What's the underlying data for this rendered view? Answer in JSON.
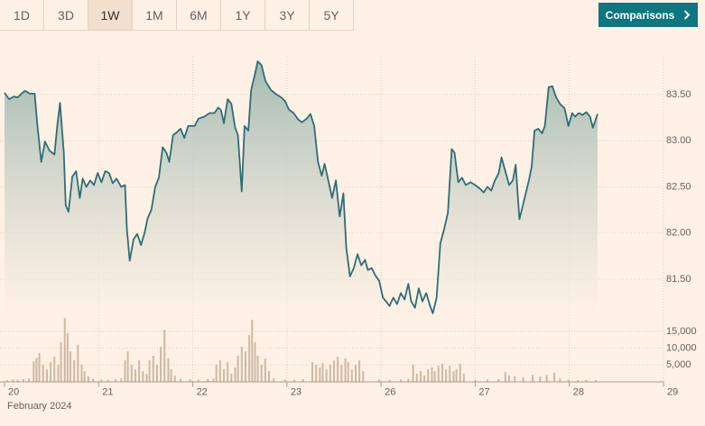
{
  "controls": {
    "ranges": [
      "1D",
      "3D",
      "1W",
      "1M",
      "6M",
      "1Y",
      "3Y",
      "5Y"
    ],
    "selected_index": 2,
    "comparisons": "Comparisons"
  },
  "chart_data": {
    "type": "area",
    "x_label": "February 2024",
    "xlim": [
      0,
      7
    ],
    "xticks": [
      {
        "value": 0,
        "label": "20"
      },
      {
        "value": 1,
        "label": "21"
      },
      {
        "value": 2,
        "label": "22"
      },
      {
        "value": 3,
        "label": "23"
      },
      {
        "value": 4,
        "label": "26"
      },
      {
        "value": 5,
        "label": "27"
      },
      {
        "value": 6,
        "label": "28"
      },
      {
        "value": 7,
        "label": "29"
      }
    ],
    "ylim": [
      81.1,
      83.9
    ],
    "yticks": [
      {
        "value": 81.5,
        "label": "81.50"
      },
      {
        "value": 82,
        "label": "82.00"
      },
      {
        "value": 82.5,
        "label": "82.50"
      },
      {
        "value": 83,
        "label": "83.00"
      },
      {
        "value": 83.5,
        "label": "83.50"
      }
    ],
    "y2lim": [
      0,
      20000
    ],
    "y2ticks": [
      {
        "value": 5000,
        "label": "5,000"
      },
      {
        "value": 10000,
        "label": "10,000"
      },
      {
        "value": 15000,
        "label": "15,000"
      }
    ],
    "grid": true,
    "series": [
      {
        "type": "area",
        "color": "#2e6e74",
        "x": [
          0.0,
          0.05,
          0.1,
          0.14,
          0.19,
          0.22,
          0.27,
          0.32,
          0.35,
          0.39,
          0.43,
          0.48,
          0.53,
          0.56,
          0.59,
          0.63,
          0.65,
          0.68,
          0.72,
          0.76,
          0.8,
          0.83,
          0.87,
          0.91,
          0.95,
          0.99,
          1.03,
          1.07,
          1.11,
          1.15,
          1.19,
          1.24,
          1.28,
          1.3,
          1.33,
          1.37,
          1.41,
          1.45,
          1.49,
          1.52,
          1.56,
          1.6,
          1.64,
          1.68,
          1.72,
          1.75,
          1.79,
          1.83,
          1.87,
          1.91,
          1.95,
          1.98,
          2.02,
          2.06,
          2.12,
          2.18,
          2.23,
          2.27,
          2.3,
          2.33,
          2.37,
          2.41,
          2.45,
          2.48,
          2.52,
          2.55,
          2.59,
          2.62,
          2.66,
          2.69,
          2.73,
          2.77,
          2.83,
          2.89,
          2.94,
          2.98,
          3.02,
          3.07,
          3.12,
          3.16,
          3.21,
          3.25,
          3.29,
          3.33,
          3.37,
          3.4,
          3.44,
          3.48,
          3.52,
          3.56,
          3.6,
          3.63,
          3.67,
          3.71,
          3.75,
          3.79,
          3.83,
          3.86,
          3.9,
          3.94,
          3.98,
          4.02,
          4.06,
          4.09,
          4.13,
          4.17,
          4.21,
          4.25,
          4.29,
          4.32,
          4.36,
          4.4,
          4.44,
          4.48,
          4.52,
          4.55,
          4.59,
          4.63,
          4.67,
          4.71,
          4.75,
          4.78,
          4.82,
          4.86,
          4.9,
          4.95,
          5.0,
          5.05,
          5.09,
          5.13,
          5.17,
          5.21,
          5.25,
          5.28,
          5.32,
          5.36,
          5.4,
          5.43,
          5.47,
          5.49,
          5.53,
          5.57,
          5.6,
          5.63,
          5.67,
          5.71,
          5.74,
          5.78,
          5.82,
          5.86,
          5.9,
          5.95,
          5.99,
          6.03,
          6.06,
          6.1,
          6.14,
          6.18,
          6.22,
          6.25,
          6.3
        ],
        "values": [
          83.52,
          83.45,
          83.48,
          83.47,
          83.52,
          83.54,
          83.51,
          83.51,
          83.16,
          82.77,
          82.99,
          82.89,
          82.85,
          83.16,
          83.41,
          82.87,
          82.3,
          82.23,
          82.61,
          82.67,
          82.38,
          82.59,
          82.5,
          82.57,
          82.52,
          82.65,
          82.55,
          82.67,
          82.65,
          82.54,
          82.59,
          82.5,
          82.52,
          82.04,
          81.7,
          81.93,
          81.99,
          81.87,
          82.01,
          82.16,
          82.25,
          82.5,
          82.6,
          82.93,
          82.87,
          82.77,
          83.06,
          83.09,
          83.13,
          83.03,
          83.16,
          83.16,
          83.16,
          83.24,
          83.26,
          83.3,
          83.3,
          83.36,
          83.33,
          83.19,
          83.45,
          83.4,
          83.14,
          83.06,
          82.45,
          83.16,
          83.11,
          83.55,
          83.72,
          83.86,
          83.82,
          83.65,
          83.55,
          83.5,
          83.47,
          83.43,
          83.34,
          83.3,
          83.23,
          83.2,
          83.24,
          83.29,
          83.16,
          82.77,
          82.62,
          82.75,
          82.57,
          82.38,
          82.57,
          82.18,
          82.43,
          81.84,
          81.53,
          81.62,
          81.77,
          81.65,
          81.71,
          81.6,
          81.62,
          81.54,
          81.48,
          81.3,
          81.25,
          81.21,
          81.3,
          81.23,
          81.35,
          81.28,
          81.45,
          81.26,
          81.19,
          81.4,
          81.26,
          81.35,
          81.21,
          81.13,
          81.3,
          81.89,
          82.04,
          82.22,
          82.91,
          82.87,
          82.55,
          82.6,
          82.52,
          82.55,
          82.52,
          82.48,
          82.44,
          82.5,
          82.46,
          82.57,
          82.65,
          82.82,
          82.67,
          82.52,
          82.57,
          82.74,
          82.15,
          82.23,
          82.4,
          82.57,
          82.72,
          83.11,
          83.13,
          83.08,
          83.16,
          83.58,
          83.59,
          83.47,
          83.4,
          83.35,
          83.16,
          83.3,
          83.26,
          83.3,
          83.28,
          83.31,
          83.26,
          83.14,
          83.29
        ]
      },
      {
        "type": "bar",
        "axis": "y2",
        "color": "#cdb8a3",
        "x": [
          0.03,
          0.09,
          0.14,
          0.2,
          0.26,
          0.31,
          0.34,
          0.37,
          0.41,
          0.45,
          0.49,
          0.53,
          0.57,
          0.6,
          0.64,
          0.67,
          0.7,
          0.74,
          0.78,
          0.82,
          0.85,
          0.89,
          0.94,
          1.03,
          1.1,
          1.18,
          1.24,
          1.28,
          1.31,
          1.35,
          1.39,
          1.43,
          1.47,
          1.51,
          1.54,
          1.58,
          1.62,
          1.66,
          1.7,
          1.74,
          1.77,
          1.81,
          1.87,
          1.97,
          2.06,
          2.16,
          2.22,
          2.25,
          2.29,
          2.33,
          2.37,
          2.41,
          2.45,
          2.48,
          2.52,
          2.56,
          2.6,
          2.63,
          2.66,
          2.69,
          2.73,
          2.77,
          2.81,
          2.86,
          2.98,
          3.08,
          3.17,
          3.27,
          3.31,
          3.35,
          3.38,
          3.42,
          3.46,
          3.5,
          3.54,
          3.58,
          3.62,
          3.65,
          3.69,
          3.73,
          3.77,
          3.81,
          3.98,
          4.09,
          4.21,
          4.29,
          4.34,
          4.38,
          4.42,
          4.46,
          4.5,
          4.54,
          4.57,
          4.61,
          4.65,
          4.69,
          4.73,
          4.77,
          4.8,
          4.84,
          4.88,
          5.0,
          5.13,
          5.25,
          5.32,
          5.36,
          5.42,
          5.51,
          5.61,
          5.69,
          5.76,
          5.84,
          5.9,
          5.99,
          6.09,
          6.18,
          6.28
        ],
        "values": [
          400,
          600,
          500,
          700,
          900,
          6000,
          7000,
          8500,
          5000,
          3600,
          5800,
          7400,
          5000,
          11800,
          19000,
          14500,
          9000,
          6300,
          11000,
          5000,
          3100,
          1500,
          800,
          600,
          500,
          700,
          900,
          6300,
          9000,
          5000,
          3600,
          6300,
          3100,
          2300,
          6300,
          7700,
          5000,
          10400,
          15500,
          6900,
          3600,
          1800,
          800,
          600,
          500,
          700,
          900,
          5000,
          6300,
          3600,
          5800,
          2300,
          4200,
          7700,
          10400,
          9000,
          13900,
          18500,
          11800,
          7700,
          5000,
          6900,
          3100,
          900,
          600,
          500,
          700,
          5800,
          5000,
          4200,
          5500,
          3600,
          5000,
          6300,
          7400,
          5000,
          6900,
          5800,
          3600,
          5000,
          6300,
          3100,
          600,
          500,
          600,
          800,
          5000,
          2300,
          3100,
          1800,
          3600,
          4200,
          3100,
          4700,
          5300,
          3600,
          4700,
          3100,
          3600,
          5300,
          2300,
          500,
          600,
          700,
          2800,
          1800,
          1500,
          1200,
          2000,
          1500,
          2000,
          2600,
          900,
          500,
          400,
          500,
          400
        ]
      }
    ]
  }
}
